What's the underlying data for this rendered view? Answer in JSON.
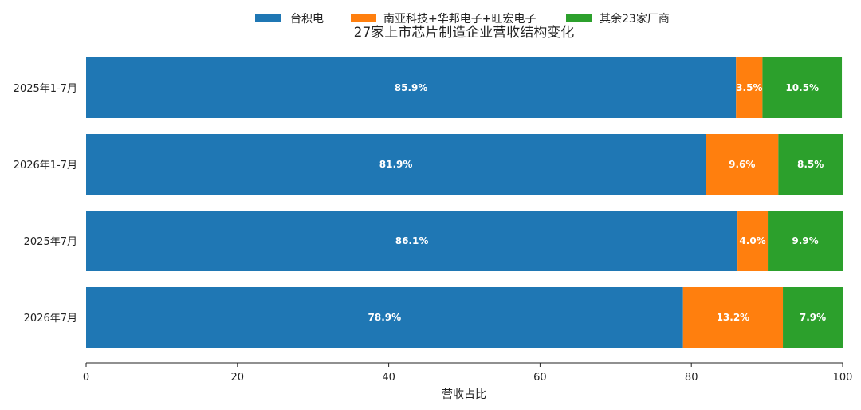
{
  "chart_data": {
    "type": "bar",
    "orientation": "horizontal",
    "stacked": true,
    "title": "27家上市芯片制造企业营收结构变化",
    "xlabel": "营收占比",
    "ylabel": "",
    "xlim": [
      0,
      100
    ],
    "xticks": [
      0,
      20,
      40,
      60,
      80,
      100
    ],
    "legend_position": "top-center",
    "grid": false,
    "categories": [
      "2025年1-7月",
      "2026年1-7月",
      "2025年7月",
      "2026年7月"
    ],
    "series": [
      {
        "name": "台积电",
        "color": "#1f77b4",
        "values": [
          85.9,
          81.9,
          86.1,
          78.9
        ],
        "labels": [
          "85.9%",
          "81.9%",
          "86.1%",
          "78.9%"
        ]
      },
      {
        "name": "南亚科技+华邦电子+旺宏电子",
        "color": "#ff7f0e",
        "values": [
          3.5,
          9.6,
          4.0,
          13.2
        ],
        "labels": [
          "3.5%",
          "9.6%",
          "4.0%",
          "13.2%"
        ]
      },
      {
        "name": "其余23家厂商",
        "color": "#2ca02c",
        "values": [
          10.5,
          8.5,
          9.9,
          7.9
        ],
        "labels": [
          "10.5%",
          "8.5%",
          "9.9%",
          "7.9%"
        ]
      }
    ]
  }
}
